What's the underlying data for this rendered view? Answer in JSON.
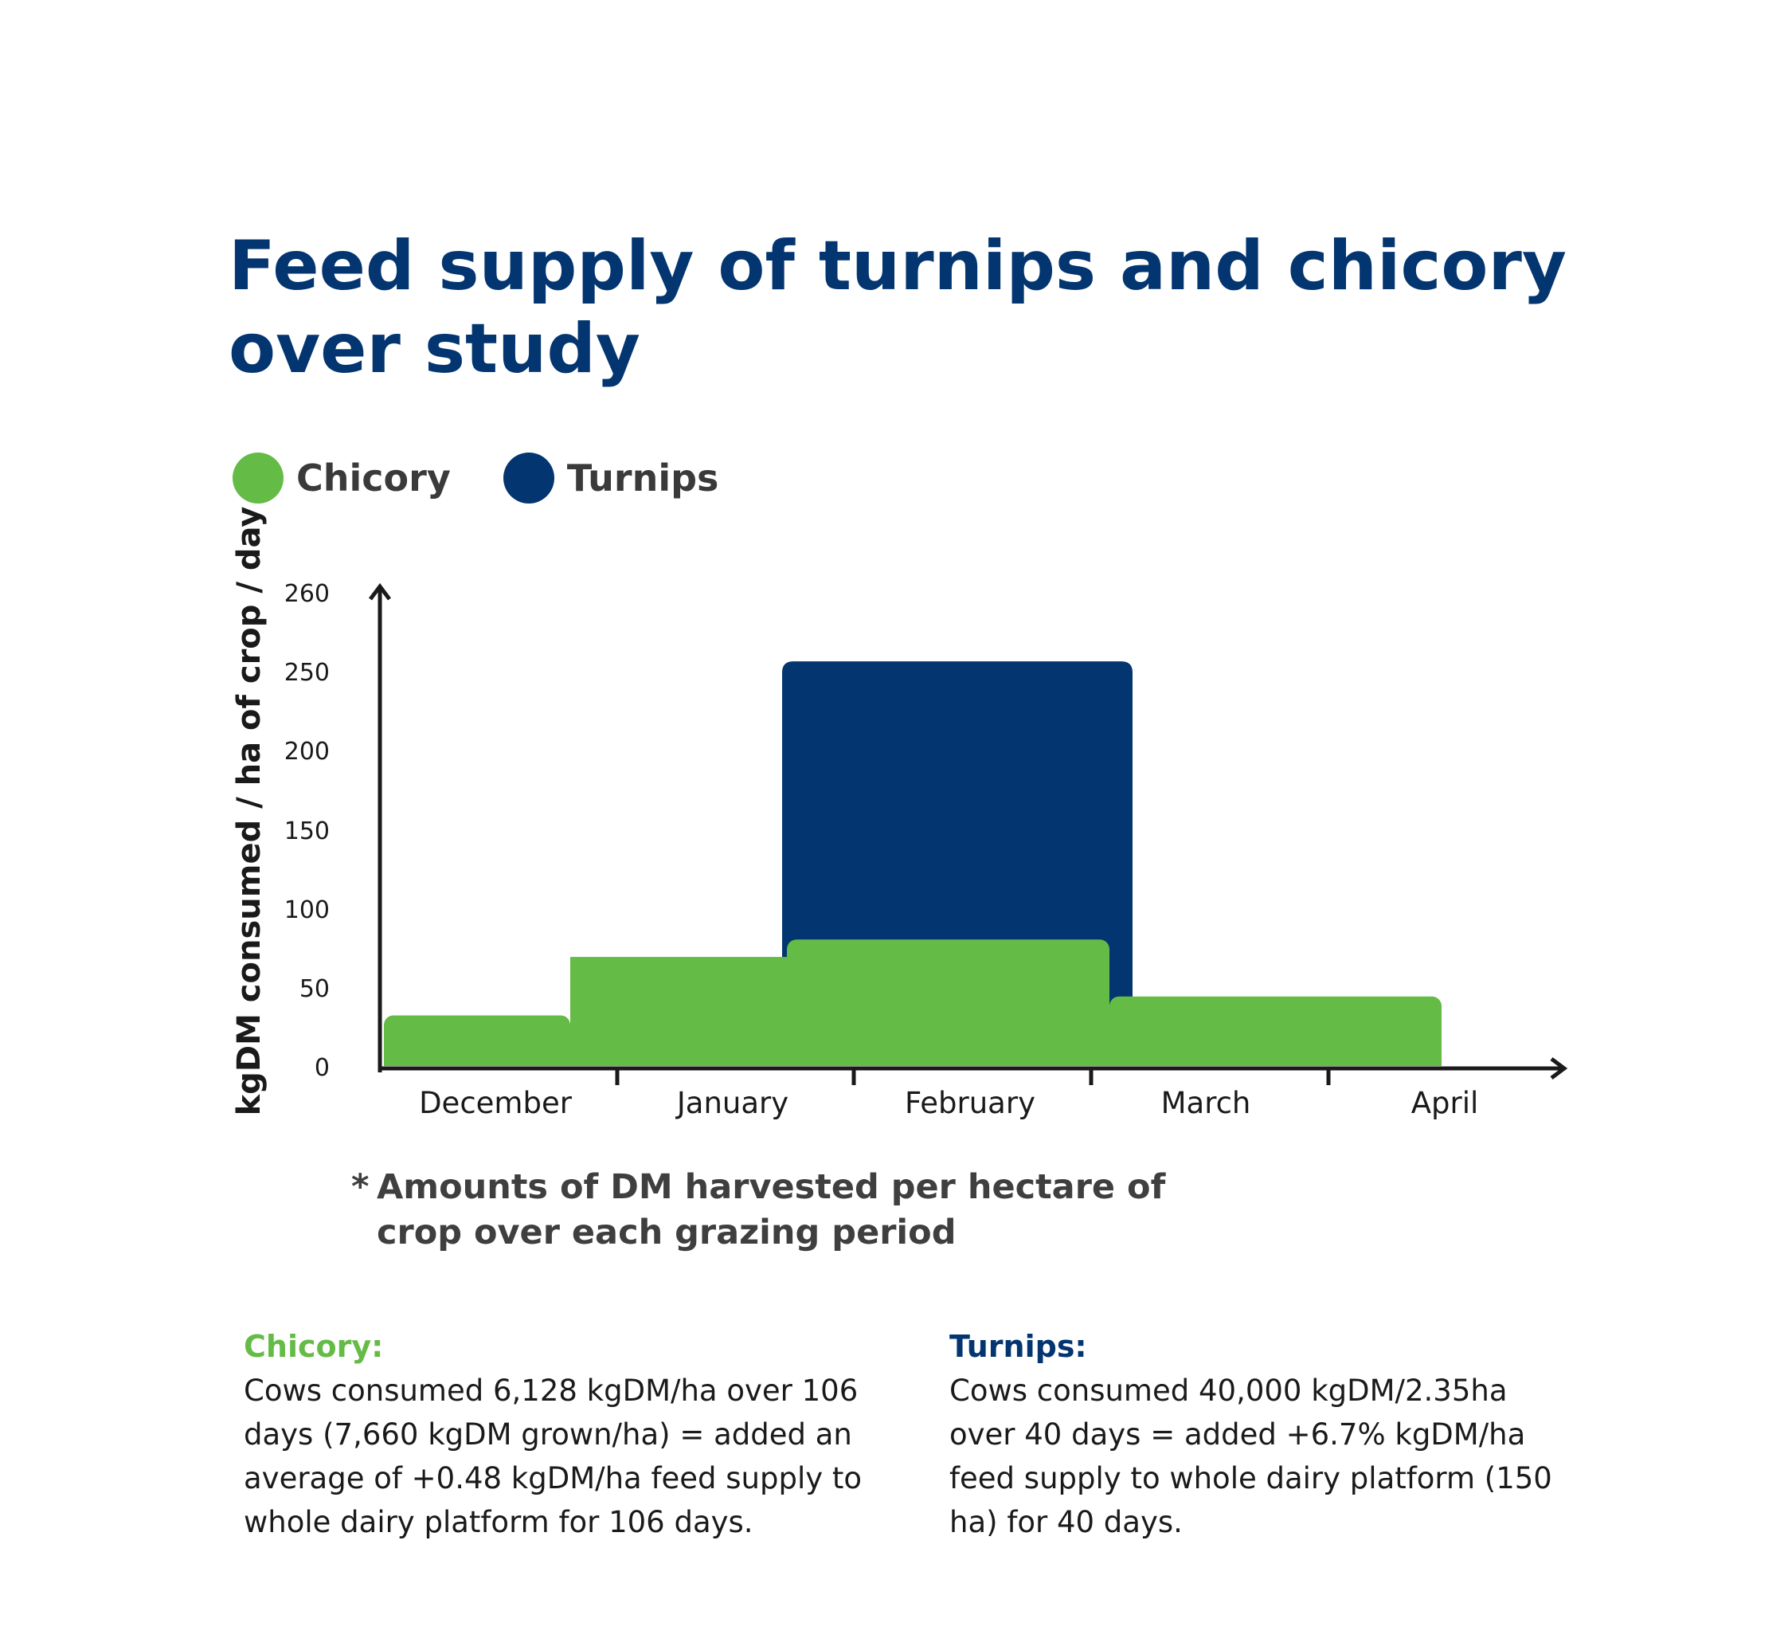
{
  "title": "Feed supply of turnips and chicory over study",
  "legend": [
    {
      "label": "Chicory",
      "color": "#64bb46"
    },
    {
      "label": "Turnips",
      "color": "#033570"
    }
  ],
  "chart_data": {
    "type": "bar",
    "title": "Feed supply of turnips and chicory over study",
    "xlabel": "",
    "ylabel": "kgDM consumed / ha of crop / day",
    "y_tick_labels": [
      "0",
      "50",
      "100",
      "150",
      "200",
      "250",
      "260"
    ],
    "month_labels": [
      "December",
      "January",
      "February",
      "March",
      "April"
    ],
    "grid": false,
    "legend_position": "top-left",
    "series": [
      {
        "name": "Chicory",
        "color": "#64bb46",
        "segments": [
          {
            "from": "December",
            "to": "January",
            "value": 32
          },
          {
            "from": "January",
            "to": "February",
            "value": 69
          },
          {
            "from": "February",
            "to": "March",
            "value": 80
          },
          {
            "from": "March",
            "to": "April",
            "value": 44
          }
        ]
      },
      {
        "name": "Turnips",
        "color": "#033570",
        "segments": [
          {
            "from": "February",
            "to": "March",
            "value": 256
          }
        ]
      }
    ]
  },
  "footnote": {
    "star": "*",
    "text": "Amounts of DM harvested per hectare of crop over each grazing period"
  },
  "notes": {
    "chicory": {
      "heading": "Chicory:",
      "text": "Cows consumed 6,128 kgDM/ha over 106 days (7,660 kgDM grown/ha) = added an average of +0.48 kgDM/ha feed supply to whole dairy platform for 106 days."
    },
    "turnips": {
      "heading": "Turnips:",
      "text": "Cows consumed 40,000 kgDM/2.35ha over 40 days = added +6.7% kgDM/ha feed supply to whole dairy platform (150 ha) for 40 days."
    }
  }
}
